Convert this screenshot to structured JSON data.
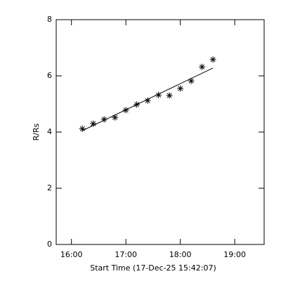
{
  "chart_data": {
    "type": "scatter",
    "xlabel": "Start Time (17-Dec-25 15:42:07)",
    "ylabel": "R/Rs",
    "xlim": [
      15.72,
      19.54
    ],
    "xticks": [
      {
        "value": 16,
        "label": "16:00"
      },
      {
        "value": 17,
        "label": "17:00"
      },
      {
        "value": 18,
        "label": "18:00"
      },
      {
        "value": 19,
        "label": "19:00"
      }
    ],
    "ylim": [
      0,
      8
    ],
    "yticks": [
      0,
      2,
      4,
      6,
      8
    ],
    "series": [
      {
        "marker": "asterisk",
        "color": "#000000",
        "x": [
          16.2,
          16.4,
          16.6,
          16.8,
          17.0,
          17.2,
          17.4,
          17.6,
          17.8,
          18.0,
          18.2,
          18.4,
          18.6
        ],
        "values": [
          4.12,
          4.3,
          4.45,
          4.52,
          4.78,
          4.98,
          5.12,
          5.32,
          5.3,
          5.55,
          5.82,
          6.32,
          6.58
        ]
      },
      {
        "marker": "line",
        "color": "#000000",
        "x": [
          16.2,
          18.6
        ],
        "values": [
          4.05,
          6.28
        ]
      }
    ]
  }
}
